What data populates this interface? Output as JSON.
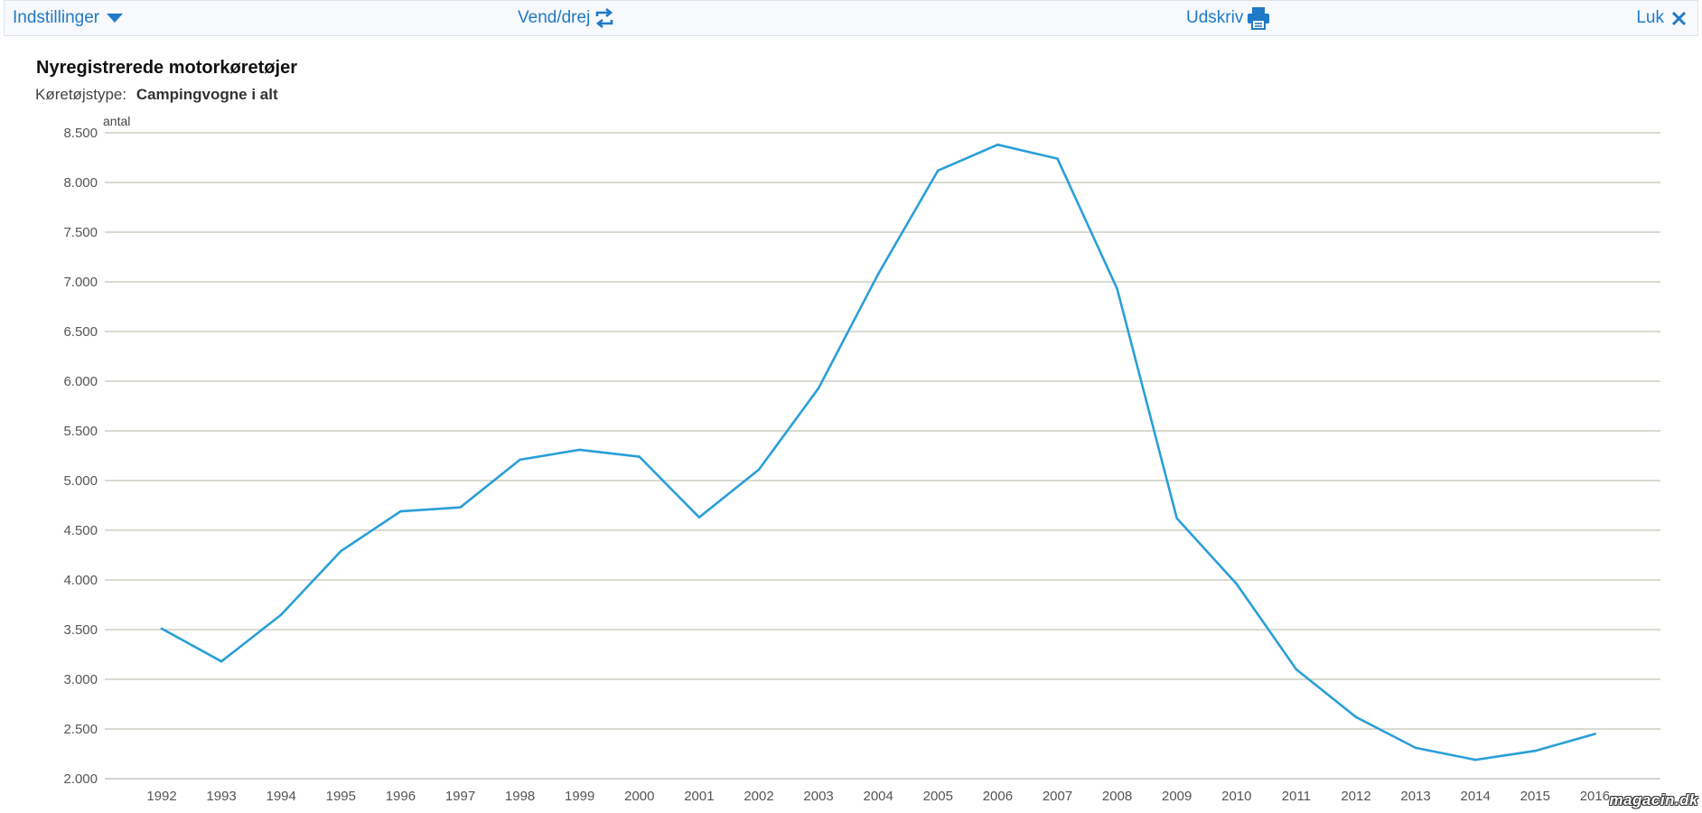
{
  "toolbar": {
    "settings_label": "Indstillinger",
    "rotate_label": "Vend/drej",
    "print_label": "Udskriv",
    "close_label": "Luk",
    "accent_color": "#1f7ac8"
  },
  "header": {
    "title": "Nyregistrerede motorkøretøjer",
    "subtitle_label": "Køretøjstype:",
    "subtitle_value": "Campingvogne i alt"
  },
  "watermark": "magacin.dk",
  "chart_data": {
    "type": "line",
    "title": "Nyregistrerede motorkøretøjer",
    "xlabel": "",
    "ylabel": "antal",
    "ylim": [
      2000,
      8500
    ],
    "grid": true,
    "line_color": "#2a9fd8",
    "categories": [
      "1992",
      "1993",
      "1994",
      "1995",
      "1996",
      "1997",
      "1998",
      "1999",
      "2000",
      "2001",
      "2002",
      "2003",
      "2004",
      "2005",
      "2006",
      "2007",
      "2008",
      "2009",
      "2010",
      "2011",
      "2012",
      "2013",
      "2014",
      "2015",
      "2016"
    ],
    "yticks": [
      2000,
      2500,
      3000,
      3500,
      4000,
      4500,
      5000,
      5500,
      6000,
      6500,
      7000,
      7500,
      8000,
      8500
    ],
    "ytick_labels": [
      "2.000",
      "2.500",
      "3.000",
      "3.500",
      "4.000",
      "4.500",
      "5.000",
      "5.500",
      "6.000",
      "6.500",
      "7.000",
      "7.500",
      "8.000",
      "8.500"
    ],
    "series": [
      {
        "values": [
          3510,
          3180,
          3650,
          4290,
          4690,
          4730,
          5210,
          5310,
          5240,
          4630,
          5110,
          5930,
          7080,
          8120,
          8380,
          8240,
          6930,
          4620,
          3960,
          3100,
          2620,
          2310,
          2190,
          2280,
          2450
        ]
      }
    ]
  }
}
